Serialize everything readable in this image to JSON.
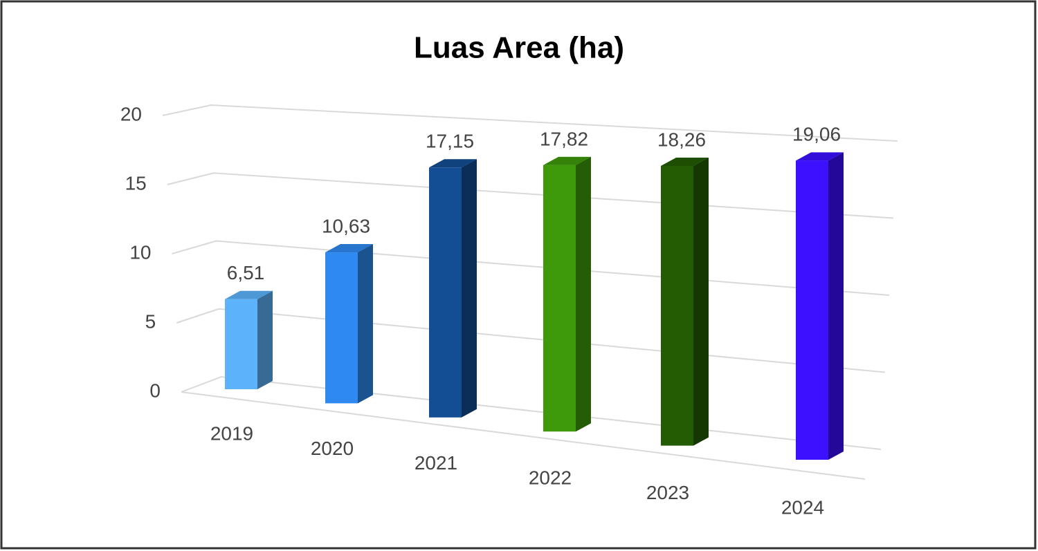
{
  "chart_data": {
    "type": "bar",
    "title": "Luas Area (ha)",
    "categories": [
      "2019",
      "2020",
      "2021",
      "2022",
      "2023",
      "2024"
    ],
    "values": [
      6.51,
      10.63,
      17.15,
      17.82,
      18.26,
      19.06
    ],
    "value_labels": [
      "6,51",
      "10,63",
      "17,15",
      "17,82",
      "18,26",
      "19,06"
    ],
    "colors": [
      "#5cb3fb",
      "#2e8af0",
      "#134e94",
      "#3e9a0a",
      "#235c02",
      "#3d10ff"
    ],
    "ylim": [
      0,
      20
    ],
    "yticks": [
      0,
      5,
      10,
      15,
      20
    ],
    "grid": true
  }
}
